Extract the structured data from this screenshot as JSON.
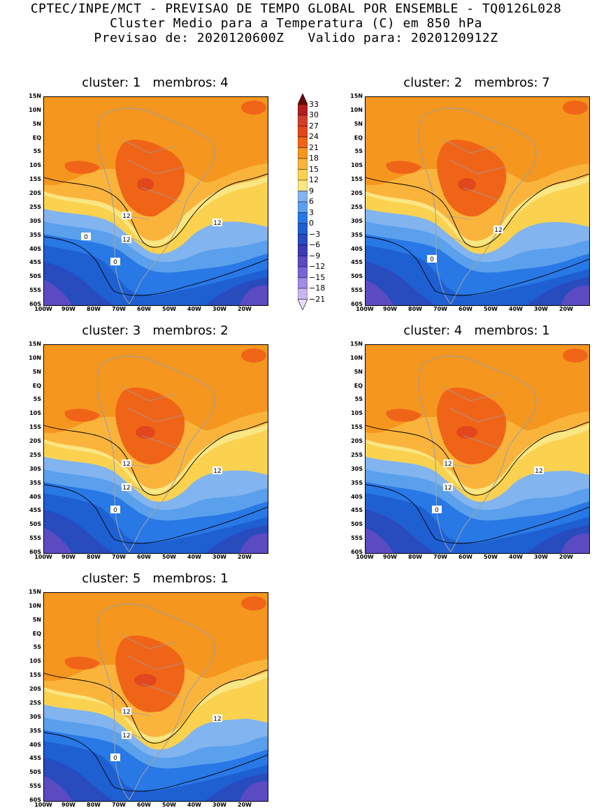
{
  "header": {
    "line1": "CPTEC/INPE/MCT - PREVISAO DE TEMPO GLOBAL POR ENSEMBLE - TQ0126L028",
    "line2": "Cluster Medio para a Temperatura (C) em 850 hPa",
    "line3": "Previsao de: 2020120600Z   Valido para: 2020120912Z"
  },
  "axes": {
    "lat_labels": [
      "15N",
      "10N",
      "5N",
      "EQ",
      "5S",
      "10S",
      "15S",
      "20S",
      "25S",
      "30S",
      "35S",
      "40S",
      "45S",
      "50S",
      "55S",
      "60S"
    ],
    "lon_labels": [
      "100W",
      "90W",
      "80W",
      "70W",
      "60W",
      "50W",
      "40W",
      "30W",
      "20W"
    ]
  },
  "colorbar": {
    "labels": [
      "33",
      "30",
      "27",
      "24",
      "21",
      "18",
      "15",
      "12",
      "9",
      "6",
      "3",
      "0",
      "-3",
      "-6",
      "-9",
      "-12",
      "-15",
      "-18",
      "-21"
    ],
    "colors": [
      "#6b0a0a",
      "#b21e1e",
      "#d23c2a",
      "#e2461c",
      "#f06418",
      "#f5961e",
      "#fab43c",
      "#fad250",
      "#fae682",
      "#82b4f0",
      "#5aa0ec",
      "#2878e6",
      "#1e5fd2",
      "#284bbe",
      "#3c3cb4",
      "#5a4bc3",
      "#7864d2",
      "#a08ce1",
      "#c8b4f0",
      "#e6dcfa"
    ]
  },
  "panels": [
    {
      "title": "cluster: 1   membros: 4",
      "contour_labels": [
        "12",
        "12",
        "12",
        "0",
        "0"
      ]
    },
    {
      "title": "cluster: 2   membros: 7",
      "contour_labels": [
        "12",
        "0"
      ]
    },
    {
      "title": "cluster: 3   membros: 2",
      "contour_labels": [
        "12",
        "12",
        "12",
        "0"
      ]
    },
    {
      "title": "cluster: 4   membros: 1",
      "contour_labels": [
        "12",
        "12",
        "12",
        "0"
      ]
    },
    {
      "title": "cluster: 5   membros: 1",
      "contour_labels": [
        "12",
        "12",
        "12",
        "0"
      ]
    }
  ]
}
